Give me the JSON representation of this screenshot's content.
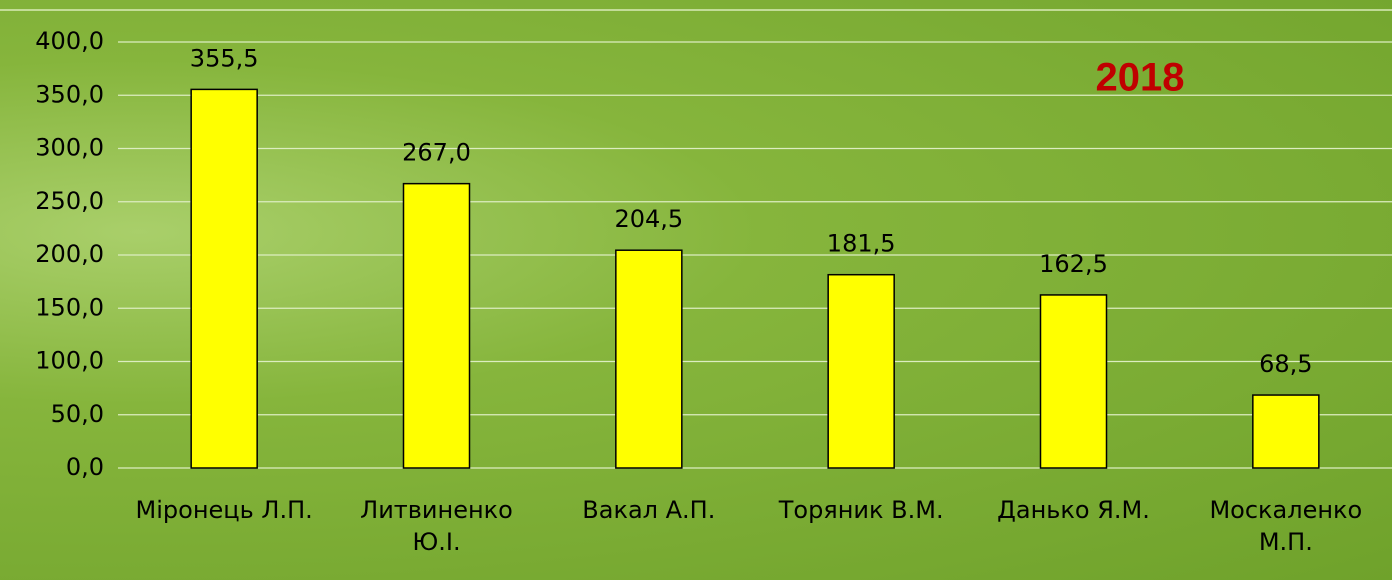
{
  "chart_data": {
    "type": "bar",
    "annotation": "2018",
    "categories": [
      "Міронець Л.П.",
      "Литвиненко Ю.І.",
      "Вакал А.П.",
      "Торяник В.М.",
      "Данько Я.М.",
      "Москаленко М.П."
    ],
    "values": [
      355.5,
      267.0,
      204.5,
      181.5,
      162.5,
      68.5
    ],
    "value_labels": [
      "355,5",
      "267,0",
      "204,5",
      "181,5",
      "162,5",
      "68,5"
    ],
    "color": "#ffff00",
    "ylim": [
      0,
      400
    ],
    "yticks": [
      {
        "value": 0,
        "label": "0,0"
      },
      {
        "value": 50,
        "label": "50,0"
      },
      {
        "value": 100,
        "label": "100,0"
      },
      {
        "value": 150,
        "label": "150,0"
      },
      {
        "value": 200,
        "label": "200,0"
      },
      {
        "value": 250,
        "label": "250,0"
      },
      {
        "value": 300,
        "label": "300,0"
      },
      {
        "value": 350,
        "label": "350,0"
      },
      {
        "value": 400,
        "label": "400,0"
      }
    ],
    "grid": true
  }
}
